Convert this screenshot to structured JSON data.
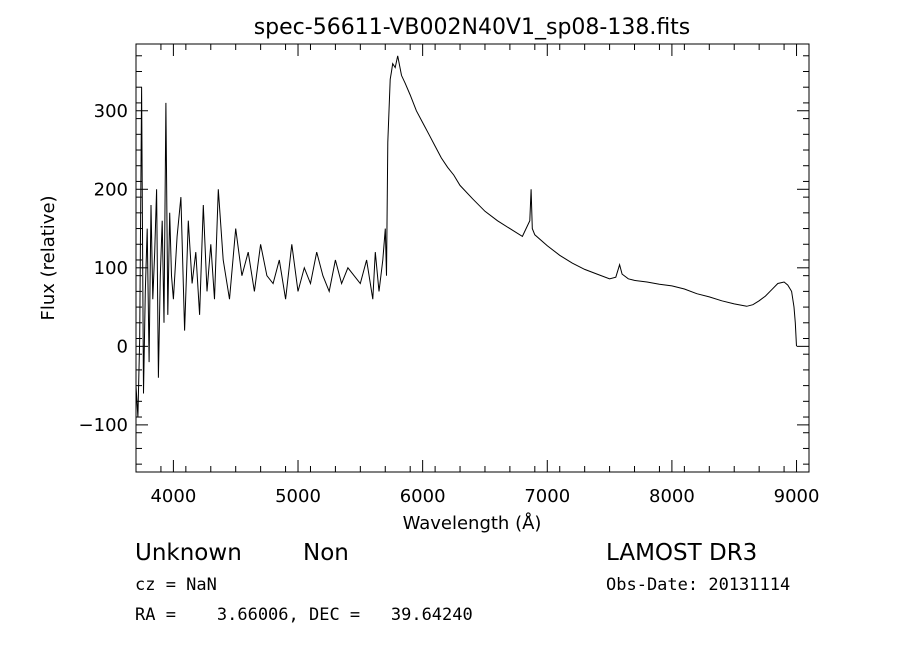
{
  "chart_data": {
    "type": "line",
    "title": "spec-56611-VB002N40V1_sp08-138.fits",
    "xlabel": "Wavelength (Å)",
    "ylabel": "Flux (relative)",
    "xlim": [
      3700,
      9100
    ],
    "ylim": [
      -160,
      385
    ],
    "xticks": [
      4000,
      5000,
      6000,
      7000,
      8000,
      9000
    ],
    "xtick_labels": [
      "4000",
      "5000",
      "6000",
      "7000",
      "8000",
      "9000"
    ],
    "yticks": [
      -100,
      0,
      100,
      200,
      300
    ],
    "ytick_labels": [
      "−100",
      "0",
      "100",
      "200",
      "300"
    ],
    "grid": false,
    "legend": "none",
    "line_color": "#000000",
    "series": [
      {
        "x": [
          3700,
          3715,
          3730,
          3745,
          3760,
          3775,
          3790,
          3805,
          3820,
          3835,
          3850,
          3865,
          3880,
          3895,
          3910,
          3925,
          3940,
          3955,
          3970,
          3985,
          4000,
          4030,
          4060,
          4090,
          4120,
          4150,
          4180,
          4210,
          4240,
          4270,
          4300,
          4330,
          4360,
          4400,
          4450,
          4500,
          4550,
          4600,
          4650,
          4700,
          4750,
          4800,
          4850,
          4900,
          4950,
          5000,
          5050,
          5100,
          5150,
          5200,
          5250,
          5300,
          5350,
          5400,
          5450,
          5500,
          5550,
          5600,
          5620,
          5650,
          5680,
          5700,
          5710,
          5720,
          5730,
          5740,
          5750,
          5760,
          5780,
          5800,
          5830,
          5860,
          5900,
          5950,
          6000,
          6050,
          6100,
          6150,
          6200,
          6250,
          6300,
          6400,
          6500,
          6600,
          6700,
          6800,
          6860,
          6870,
          6880,
          6900,
          7000,
          7100,
          7200,
          7300,
          7400,
          7500,
          7550,
          7580,
          7600,
          7650,
          7700,
          7800,
          7900,
          8000,
          8100,
          8200,
          8300,
          8400,
          8500,
          8600,
          8650,
          8700,
          8750,
          8800,
          8850,
          8900,
          8930,
          8960,
          8980,
          8990,
          9000
        ],
        "y": [
          -50,
          -90,
          10,
          330,
          -60,
          70,
          150,
          -20,
          180,
          60,
          120,
          200,
          -40,
          90,
          160,
          30,
          310,
          40,
          170,
          90,
          60,
          140,
          190,
          20,
          160,
          80,
          120,
          40,
          180,
          70,
          130,
          60,
          200,
          110,
          60,
          150,
          90,
          120,
          70,
          130,
          90,
          80,
          110,
          60,
          130,
          70,
          100,
          80,
          120,
          90,
          70,
          110,
          80,
          100,
          90,
          80,
          110,
          60,
          120,
          70,
          110,
          150,
          90,
          260,
          300,
          340,
          350,
          360,
          355,
          370,
          345,
          335,
          320,
          300,
          285,
          270,
          255,
          240,
          228,
          218,
          205,
          188,
          172,
          160,
          150,
          140,
          160,
          200,
          150,
          142,
          128,
          116,
          106,
          98,
          92,
          86,
          88,
          104,
          92,
          86,
          84,
          82,
          79,
          77,
          73,
          67,
          63,
          58,
          54,
          51,
          53,
          58,
          64,
          72,
          80,
          82,
          78,
          70,
          50,
          30,
          0
        ]
      }
    ]
  },
  "footer": {
    "object_class": "Unknown",
    "object_subclass": "Non",
    "survey": "LAMOST DR3",
    "cz": "cz = NaN",
    "obs_date": "Obs-Date: 20131114",
    "coords": "RA =    3.66006, DEC =   39.64240"
  }
}
